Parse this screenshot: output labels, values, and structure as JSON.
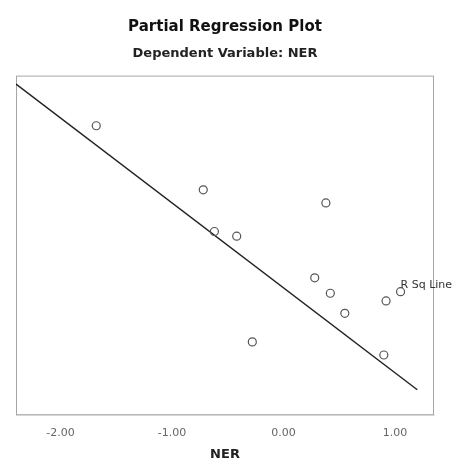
{
  "chart_data": {
    "type": "scatter",
    "title": "Partial Regression Plot",
    "subtitle": "Dependent Variable: NER",
    "xlabel": "NER",
    "xlim": [
      -2.4,
      1.35
    ],
    "ylim": [
      -2.2,
      2.2
    ],
    "xticks": [
      {
        "value": -2,
        "label": "-2.00"
      },
      {
        "value": -1,
        "label": "-1.00"
      },
      {
        "value": 0,
        "label": "0.00"
      },
      {
        "value": 1,
        "label": "1.00"
      }
    ],
    "grid": false,
    "tick_labels": "x",
    "series": [
      {
        "type": "scatter",
        "marker": "circle",
        "color": "#555555",
        "x": [
          -1.68,
          -0.72,
          0.38,
          -0.62,
          -0.42,
          0.28,
          0.42,
          0.55,
          -0.28,
          0.92,
          0.9
        ],
        "values": [
          1.55,
          0.72,
          0.55,
          0.18,
          0.12,
          -0.42,
          -0.62,
          -0.88,
          -1.25,
          -0.72,
          -1.42
        ]
      },
      {
        "type": "line",
        "line_style": "solid",
        "color": "#222222",
        "x": [
          -2.4,
          1.2
        ],
        "values": [
          2.09,
          -1.87
        ]
      },
      {
        "type": "scatter",
        "marker": "circle",
        "color": "#555555",
        "x": [
          1.05
        ],
        "values": [
          -0.6
        ]
      }
    ],
    "annotations": [
      {
        "text": "R Sq Line",
        "x": 1.05,
        "y": -0.52
      }
    ]
  }
}
